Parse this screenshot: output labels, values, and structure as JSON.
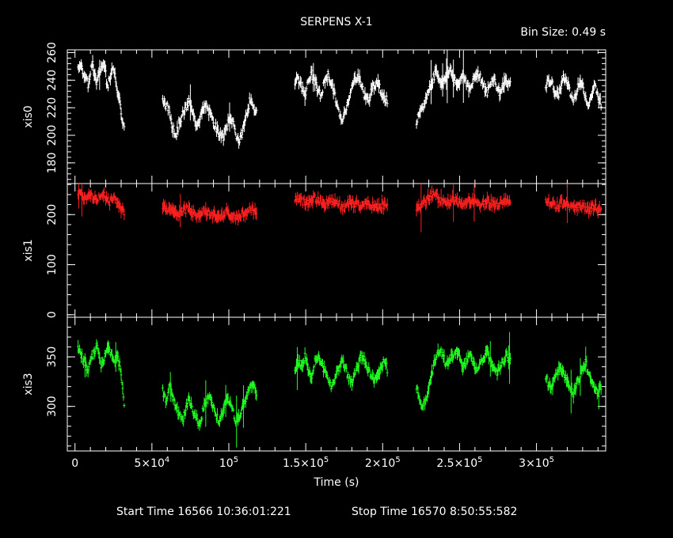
{
  "title": "SERPENS X-1",
  "bin_size_label": "Bin Size: 0.49 s",
  "xlabel": "Time (s)",
  "start_time": "Start Time 16566 10:36:01:221",
  "stop_time": "Stop Time 16570  8:50:55:582",
  "x_tick_labels": [
    {
      "label": "0",
      "exp": "",
      "value": 0
    },
    {
      "label": "5×10",
      "exp": "4",
      "value": 50000
    },
    {
      "label": "10",
      "exp": "5",
      "value": 100000
    },
    {
      "label": "1.5×10",
      "exp": "5",
      "value": 150000
    },
    {
      "label": "2×10",
      "exp": "5",
      "value": 200000
    },
    {
      "label": "2.5×10",
      "exp": "5",
      "value": 250000
    },
    {
      "label": "3×10",
      "exp": "5",
      "value": 300000
    }
  ],
  "chart_data": {
    "type": "scatter",
    "xlim": [
      -5000,
      345000
    ],
    "gaps": [
      [
        33000,
        57000
      ],
      [
        120000,
        143000
      ],
      [
        205000,
        222000
      ],
      [
        284000,
        306000
      ]
    ],
    "panels": [
      {
        "ylabel": "xis0",
        "color": "#ffffff",
        "ylim": [
          165,
          262
        ],
        "y_ticks": [
          180,
          200,
          220,
          240,
          260
        ],
        "segments": [
          {
            "start": 2000,
            "end": 32000,
            "values": [
              250,
              252,
              247,
              245,
              240,
              236,
              248,
              251,
              243,
              238,
              244,
              249,
              252,
              246,
              235,
              240,
              245,
              250,
              241,
              230,
              225,
              210,
              205
            ]
          },
          {
            "start": 57000,
            "end": 118000,
            "values": [
              225,
              222,
              218,
              205,
              200,
              210,
              215,
              220,
              225,
              215,
              208,
              212,
              218,
              222,
              216,
              210,
              205,
              200,
              198,
              205,
              212,
              210,
              200,
              195,
              205,
              215,
              225,
              220,
              218
            ]
          },
          {
            "start": 143000,
            "end": 203000,
            "values": [
              240,
              242,
              235,
              230,
              238,
              245,
              240,
              232,
              228,
              240,
              244,
              238,
              230,
              220,
              210,
              215,
              225,
              232,
              240,
              244,
              238,
              230,
              225,
              230,
              236,
              240,
              232,
              228,
              225
            ]
          },
          {
            "start": 222000,
            "end": 283000,
            "values": [
              210,
              215,
              220,
              228,
              235,
              242,
              246,
              240,
              238,
              244,
              248,
              242,
              236,
              240,
              245,
              238,
              232,
              240,
              246,
              243,
              236,
              230,
              238,
              242,
              235,
              230,
              238,
              240,
              236
            ]
          },
          {
            "start": 306000,
            "end": 342000,
            "values": [
              235,
              240,
              238,
              232,
              228,
              236,
              242,
              238,
              230,
              225,
              232,
              240,
              235,
              228,
              222,
              230,
              236,
              228,
              222
            ]
          }
        ]
      },
      {
        "ylabel": "xis1",
        "color": "#ff2020",
        "ylim": [
          -5,
          262
        ],
        "y_ticks": [
          0,
          100,
          200
        ],
        "segments": [
          {
            "start": 2000,
            "end": 32000,
            "values": [
              240,
              238,
              235,
              233,
              230,
              236,
              240,
              238,
              232,
              228,
              234,
              238,
              240,
              236,
              230,
              226,
              232,
              236,
              230,
              222,
              215,
              210,
              205
            ]
          },
          {
            "start": 57000,
            "end": 118000,
            "values": [
              215,
              213,
              210,
              205,
              202,
              200,
              205,
              210,
              208,
              204,
              200,
              198,
              203,
              207,
              205,
              201,
              198,
              196,
              200,
              204,
              202,
              198,
              195,
              199,
              203,
              207,
              210,
              208,
              206
            ]
          },
          {
            "start": 143000,
            "end": 203000,
            "values": [
              230,
              232,
              228,
              225,
              222,
              228,
              232,
              230,
              226,
              220,
              224,
              228,
              226,
              222,
              218,
              215,
              220,
              224,
              222,
              218,
              214,
              218,
              222,
              220,
              216,
              213,
              216,
              220,
              218
            ]
          },
          {
            "start": 222000,
            "end": 283000,
            "values": [
              215,
              218,
              222,
              228,
              236,
              242,
              235,
              228,
              224,
              220,
              226,
              230,
              226,
              222,
              218,
              224,
              228,
              226,
              222,
              218,
              222,
              226,
              224,
              220,
              218,
              222,
              226,
              230,
              226
            ]
          },
          {
            "start": 306000,
            "end": 342000,
            "values": [
              225,
              226,
              222,
              218,
              220,
              224,
              222,
              218,
              214,
              212,
              216,
              220,
              218,
              214,
              210,
              214,
              218,
              212,
              208
            ]
          }
        ]
      },
      {
        "ylabel": "xis3",
        "color": "#20ff20",
        "ylim": [
          255,
          390
        ],
        "y_ticks": [
          300,
          350
        ],
        "segments": [
          {
            "start": 2000,
            "end": 32000,
            "values": [
              360,
              355,
              350,
              345,
              340,
              335,
              348,
              352,
              356,
              360,
              350,
              342,
              346,
              354,
              362,
              358,
              350,
              345,
              352,
              348,
              340,
              320,
              300
            ]
          },
          {
            "start": 57000,
            "end": 118000,
            "values": [
              315,
              305,
              320,
              310,
              300,
              292,
              285,
              300,
              308,
              296,
              288,
              282,
              295,
              305,
              312,
              300,
              290,
              285,
              295,
              310,
              305,
              295,
              285,
              290,
              300,
              310,
              318,
              322,
              315
            ]
          },
          {
            "start": 143000,
            "end": 203000,
            "values": [
              335,
              345,
              340,
              350,
              338,
              330,
              345,
              352,
              342,
              336,
              328,
              320,
              325,
              335,
              345,
              340,
              332,
              324,
              330,
              340,
              352,
              348,
              340,
              332,
              326,
              330,
              338,
              345,
              338
            ]
          },
          {
            "start": 222000,
            "end": 283000,
            "values": [
              320,
              305,
              300,
              310,
              325,
              340,
              352,
              358,
              350,
              342,
              346,
              352,
              356,
              348,
              340,
              345,
              352,
              344,
              336,
              342,
              350,
              355,
              346,
              338,
              334,
              340,
              348,
              352,
              346
            ]
          },
          {
            "start": 306000,
            "end": 342000,
            "values": [
              330,
              322,
              318,
              328,
              335,
              340,
              332,
              325,
              318,
              312,
              320,
              330,
              338,
              345,
              332,
              325,
              318,
              312,
              320
            ]
          }
        ]
      }
    ]
  }
}
